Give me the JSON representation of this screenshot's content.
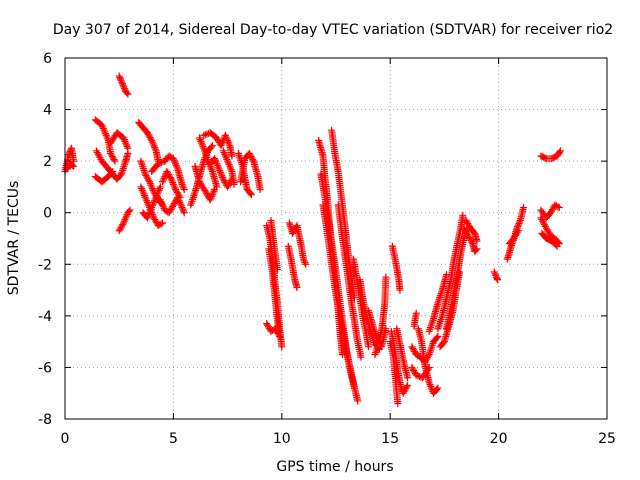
{
  "chart_data": {
    "type": "scatter",
    "title": "Day 307 of 2014, Sidereal Day-to-day VTEC variation (SDTVAR) for receiver rio2",
    "xlabel": "GPS time / hours",
    "ylabel": "SDTVAR / TECUs",
    "xlim": [
      0,
      25
    ],
    "ylim": [
      -8,
      6
    ],
    "xticks": [
      0,
      5,
      10,
      15,
      20,
      25
    ],
    "yticks": [
      -8,
      -6,
      -4,
      -2,
      0,
      2,
      4,
      6
    ],
    "grid": true,
    "legend": "none",
    "marker": "plus",
    "color": "#ff0000",
    "segments": [
      [
        [
          0.0,
          1.6
        ],
        [
          0.15,
          2.2
        ],
        [
          0.3,
          2.5
        ],
        [
          0.4,
          2.0
        ]
      ],
      [
        [
          0.1,
          1.7
        ],
        [
          0.25,
          1.9
        ],
        [
          0.4,
          1.8
        ]
      ],
      [
        [
          1.45,
          2.4
        ],
        [
          1.7,
          2.0
        ],
        [
          1.9,
          1.8
        ],
        [
          2.1,
          1.6
        ],
        [
          2.4,
          1.3
        ],
        [
          2.6,
          1.5
        ],
        [
          2.8,
          2.0
        ],
        [
          2.9,
          2.3
        ]
      ],
      [
        [
          1.4,
          3.6
        ],
        [
          1.7,
          3.4
        ],
        [
          2.0,
          2.8
        ],
        [
          2.1,
          2.3
        ],
        [
          2.3,
          2.0
        ]
      ],
      [
        [
          1.4,
          1.4
        ],
        [
          1.7,
          1.2
        ],
        [
          2.0,
          1.4
        ],
        [
          2.2,
          1.6
        ]
      ],
      [
        [
          2.1,
          2.7
        ],
        [
          2.4,
          3.1
        ],
        [
          2.7,
          2.9
        ],
        [
          2.9,
          2.5
        ]
      ],
      [
        [
          2.5,
          5.3
        ],
        [
          2.65,
          5.0
        ],
        [
          2.8,
          4.7
        ],
        [
          2.9,
          4.6
        ]
      ],
      [
        [
          2.5,
          -0.7
        ],
        [
          2.7,
          -0.4
        ],
        [
          2.9,
          0.0
        ],
        [
          3.0,
          0.1
        ]
      ],
      [
        [
          3.4,
          3.5
        ],
        [
          3.6,
          3.3
        ],
        [
          3.8,
          3.1
        ],
        [
          4.0,
          2.8
        ],
        [
          4.2,
          2.4
        ],
        [
          4.3,
          2.0
        ]
      ],
      [
        [
          3.5,
          2.0
        ],
        [
          3.7,
          1.5
        ],
        [
          3.9,
          1.2
        ],
        [
          4.1,
          0.8
        ],
        [
          4.3,
          0.5
        ],
        [
          4.5,
          0.3
        ]
      ],
      [
        [
          3.5,
          1.0
        ],
        [
          3.7,
          0.6
        ],
        [
          3.9,
          0.2
        ],
        [
          4.1,
          -0.2
        ],
        [
          4.3,
          -0.5
        ],
        [
          4.5,
          -0.4
        ]
      ],
      [
        [
          3.6,
          0.0
        ],
        [
          3.8,
          -0.2
        ],
        [
          4.0,
          0.2
        ],
        [
          4.2,
          0.6
        ],
        [
          4.4,
          1.0
        ]
      ],
      [
        [
          4.0,
          1.6
        ],
        [
          4.3,
          1.9
        ],
        [
          4.6,
          2.0
        ],
        [
          4.8,
          2.2
        ],
        [
          5.0,
          2.1
        ],
        [
          5.2,
          1.7
        ],
        [
          5.4,
          1.1
        ],
        [
          5.5,
          0.9
        ]
      ],
      [
        [
          4.4,
          0.5
        ],
        [
          4.6,
          0.1
        ],
        [
          4.8,
          0.0
        ],
        [
          5.0,
          0.3
        ],
        [
          5.2,
          0.6
        ],
        [
          5.4,
          0.2
        ],
        [
          5.5,
          0.0
        ]
      ],
      [
        [
          4.5,
          1.2
        ],
        [
          4.7,
          1.6
        ],
        [
          4.9,
          1.3
        ],
        [
          5.1,
          0.9
        ],
        [
          5.3,
          0.6
        ]
      ],
      [
        [
          5.8,
          0.3
        ],
        [
          6.0,
          0.8
        ],
        [
          6.2,
          1.4
        ],
        [
          6.4,
          2.0
        ],
        [
          6.6,
          2.4
        ],
        [
          6.8,
          2.6
        ]
      ],
      [
        [
          6.0,
          1.8
        ],
        [
          6.2,
          1.2
        ],
        [
          6.5,
          0.8
        ],
        [
          6.7,
          0.5
        ],
        [
          6.9,
          0.9
        ]
      ],
      [
        [
          6.2,
          2.9
        ],
        [
          6.4,
          2.5
        ],
        [
          6.6,
          2.0
        ],
        [
          6.8,
          1.6
        ],
        [
          7.0,
          1.0
        ]
      ],
      [
        [
          6.4,
          3.0
        ],
        [
          6.7,
          3.1
        ],
        [
          7.0,
          2.9
        ],
        [
          7.2,
          2.6
        ],
        [
          7.4,
          3.0
        ],
        [
          7.6,
          2.6
        ],
        [
          7.7,
          2.2
        ]
      ],
      [
        [
          6.7,
          1.9
        ],
        [
          6.9,
          2.1
        ],
        [
          7.1,
          1.7
        ],
        [
          7.3,
          1.3
        ],
        [
          7.5,
          1.0
        ],
        [
          7.7,
          1.3
        ]
      ],
      [
        [
          7.3,
          2.4
        ],
        [
          7.5,
          2.0
        ],
        [
          7.7,
          1.6
        ],
        [
          7.8,
          1.1
        ]
      ],
      [
        [
          8.0,
          2.3
        ],
        [
          8.2,
          1.8
        ],
        [
          8.3,
          1.3
        ],
        [
          8.4,
          0.9
        ],
        [
          8.6,
          0.7
        ]
      ],
      [
        [
          8.1,
          1.2
        ],
        [
          8.3,
          2.1
        ],
        [
          8.5,
          2.3
        ],
        [
          8.7,
          2.0
        ],
        [
          8.9,
          1.4
        ],
        [
          9.0,
          0.9
        ]
      ],
      [
        [
          9.3,
          -0.5
        ],
        [
          9.45,
          -1.0
        ],
        [
          9.6,
          -2.0
        ],
        [
          9.7,
          -2.8
        ],
        [
          9.8,
          -3.5
        ],
        [
          9.9,
          -4.5
        ],
        [
          10.0,
          -5.2
        ]
      ],
      [
        [
          9.4,
          -1.4
        ],
        [
          9.55,
          -2.2
        ],
        [
          9.65,
          -3.0
        ],
        [
          9.75,
          -3.8
        ],
        [
          9.85,
          -4.6
        ]
      ],
      [
        [
          9.5,
          -0.3
        ],
        [
          9.6,
          -1.0
        ],
        [
          9.7,
          -1.6
        ],
        [
          9.8,
          -2.2
        ]
      ],
      [
        [
          9.3,
          -4.3
        ],
        [
          9.5,
          -4.6
        ],
        [
          9.7,
          -4.5
        ],
        [
          9.9,
          -4.8
        ]
      ],
      [
        [
          10.3,
          -1.3
        ],
        [
          10.45,
          -1.9
        ],
        [
          10.6,
          -2.6
        ],
        [
          10.7,
          -2.9
        ]
      ],
      [
        [
          10.35,
          -0.4
        ],
        [
          10.5,
          -0.8
        ],
        [
          10.7,
          -0.5
        ],
        [
          10.9,
          -1.3
        ],
        [
          11.0,
          -1.8
        ],
        [
          11.1,
          -2.0
        ]
      ],
      [
        [
          11.7,
          2.8
        ],
        [
          11.9,
          2.2
        ],
        [
          12.0,
          1.3
        ],
        [
          12.1,
          0.6
        ],
        [
          12.2,
          -0.4
        ],
        [
          12.3,
          -1.2
        ],
        [
          12.4,
          -2.0
        ],
        [
          12.5,
          -2.9
        ],
        [
          12.6,
          -3.8
        ],
        [
          12.7,
          -4.8
        ],
        [
          12.8,
          -5.5
        ]
      ],
      [
        [
          11.8,
          1.5
        ],
        [
          11.95,
          0.8
        ],
        [
          12.1,
          0.0
        ],
        [
          12.25,
          -0.9
        ],
        [
          12.4,
          -1.7
        ],
        [
          12.55,
          -2.6
        ],
        [
          12.7,
          -3.6
        ],
        [
          12.85,
          -4.5
        ],
        [
          13.0,
          -5.4
        ],
        [
          13.2,
          -6.2
        ],
        [
          13.35,
          -6.8
        ]
      ],
      [
        [
          11.9,
          0.3
        ],
        [
          12.05,
          -0.5
        ],
        [
          12.2,
          -1.4
        ],
        [
          12.35,
          -2.3
        ],
        [
          12.5,
          -3.2
        ],
        [
          12.7,
          -4.1
        ],
        [
          12.9,
          -5.0
        ],
        [
          13.1,
          -5.9
        ],
        [
          13.3,
          -6.6
        ],
        [
          13.5,
          -7.3
        ]
      ],
      [
        [
          12.3,
          3.2
        ],
        [
          12.45,
          2.3
        ],
        [
          12.6,
          1.6
        ],
        [
          12.75,
          0.6
        ],
        [
          12.9,
          -0.4
        ],
        [
          13.05,
          -1.5
        ],
        [
          13.2,
          -2.4
        ],
        [
          13.35,
          -3.3
        ]
      ],
      [
        [
          12.6,
          0.3
        ],
        [
          12.75,
          -0.7
        ],
        [
          12.9,
          -1.6
        ],
        [
          13.05,
          -2.5
        ],
        [
          13.2,
          -3.4
        ],
        [
          13.35,
          -4.2
        ],
        [
          13.5,
          -5.0
        ],
        [
          13.65,
          -5.6
        ]
      ],
      [
        [
          13.3,
          -1.8
        ],
        [
          13.45,
          -2.5
        ],
        [
          13.6,
          -3.3
        ],
        [
          13.75,
          -4.1
        ],
        [
          13.9,
          -4.7
        ],
        [
          14.0,
          -5.2
        ]
      ],
      [
        [
          13.6,
          -2.6
        ],
        [
          13.75,
          -3.4
        ],
        [
          13.9,
          -4.0
        ],
        [
          14.1,
          -4.6
        ],
        [
          14.3,
          -5.1
        ],
        [
          14.5,
          -5.3
        ]
      ],
      [
        [
          14.0,
          -3.8
        ],
        [
          14.2,
          -4.4
        ],
        [
          14.4,
          -4.9
        ],
        [
          14.6,
          -5.2
        ],
        [
          14.8,
          -4.5
        ]
      ],
      [
        [
          14.3,
          -5.5
        ],
        [
          14.5,
          -5.0
        ],
        [
          14.65,
          -4.3
        ],
        [
          14.75,
          -3.5
        ],
        [
          14.8,
          -2.5
        ]
      ],
      [
        [
          15.0,
          -5.0
        ],
        [
          15.15,
          -5.6
        ],
        [
          15.25,
          -6.5
        ],
        [
          15.35,
          -7.4
        ]
      ],
      [
        [
          15.05,
          -4.6
        ],
        [
          15.2,
          -5.3
        ],
        [
          15.35,
          -6.1
        ],
        [
          15.5,
          -6.8
        ],
        [
          15.6,
          -7.0
        ],
        [
          15.8,
          -6.7
        ]
      ],
      [
        [
          15.3,
          -4.5
        ],
        [
          15.5,
          -5.3
        ],
        [
          15.65,
          -5.9
        ],
        [
          15.8,
          -6.4
        ]
      ],
      [
        [
          15.1,
          -1.3
        ],
        [
          15.25,
          -1.9
        ],
        [
          15.4,
          -2.6
        ],
        [
          15.45,
          -3.0
        ]
      ],
      [
        [
          16.2,
          -3.9
        ],
        [
          16.1,
          -4.4
        ]
      ],
      [
        [
          16.0,
          -5.2
        ],
        [
          16.2,
          -5.5
        ],
        [
          16.4,
          -5.6
        ],
        [
          16.6,
          -5.8
        ],
        [
          16.8,
          -5.5
        ],
        [
          17.0,
          -5.0
        ],
        [
          17.2,
          -4.8
        ]
      ],
      [
        [
          16.3,
          -4.5
        ],
        [
          16.45,
          -5.0
        ],
        [
          16.6,
          -5.9
        ],
        [
          16.8,
          -6.6
        ],
        [
          17.0,
          -7.0
        ],
        [
          17.2,
          -6.8
        ]
      ],
      [
        [
          16.0,
          -6.0
        ],
        [
          16.2,
          -6.3
        ],
        [
          16.5,
          -6.4
        ],
        [
          16.8,
          -6.0
        ]
      ],
      [
        [
          16.8,
          -4.6
        ],
        [
          17.0,
          -4.1
        ],
        [
          17.2,
          -3.5
        ],
        [
          17.4,
          -3.0
        ],
        [
          17.6,
          -2.4
        ]
      ],
      [
        [
          17.2,
          -4.5
        ],
        [
          17.4,
          -4.0
        ],
        [
          17.6,
          -3.3
        ],
        [
          17.8,
          -2.6
        ],
        [
          17.95,
          -1.8
        ],
        [
          18.1,
          -1.2
        ],
        [
          18.25,
          -0.6
        ],
        [
          18.35,
          -0.1
        ]
      ],
      [
        [
          17.6,
          -4.5
        ],
        [
          17.8,
          -3.7
        ],
        [
          17.95,
          -3.0
        ],
        [
          18.1,
          -2.4
        ],
        [
          18.25,
          -1.6
        ],
        [
          18.4,
          -1.0
        ],
        [
          18.55,
          -0.6
        ]
      ],
      [
        [
          17.3,
          -5.2
        ],
        [
          17.5,
          -5.0
        ],
        [
          17.7,
          -4.4
        ],
        [
          17.9,
          -3.8
        ],
        [
          18.05,
          -3.0
        ],
        [
          18.2,
          -2.3
        ]
      ],
      [
        [
          18.4,
          -0.6
        ],
        [
          18.6,
          -0.9
        ],
        [
          18.8,
          -1.2
        ],
        [
          18.9,
          -1.5
        ],
        [
          19.0,
          -1.4
        ]
      ],
      [
        [
          18.5,
          -0.3
        ],
        [
          18.7,
          -0.6
        ],
        [
          18.9,
          -0.8
        ],
        [
          19.0,
          -1.1
        ]
      ],
      [
        [
          19.8,
          -2.3
        ],
        [
          19.9,
          -2.5
        ],
        [
          19.95,
          -2.6
        ]
      ],
      [
        [
          20.4,
          -1.8
        ],
        [
          20.55,
          -1.4
        ],
        [
          20.7,
          -1.0
        ],
        [
          20.85,
          -0.6
        ],
        [
          21.0,
          -0.3
        ],
        [
          21.15,
          0.2
        ]
      ],
      [
        [
          20.5,
          -1.2
        ],
        [
          20.7,
          -1.0
        ],
        [
          20.9,
          -0.7
        ]
      ],
      [
        [
          21.95,
          2.2
        ],
        [
          22.2,
          2.1
        ],
        [
          22.45,
          2.1
        ],
        [
          22.7,
          2.2
        ],
        [
          22.85,
          2.4
        ]
      ],
      [
        [
          21.95,
          0.1
        ],
        [
          22.2,
          -0.2
        ],
        [
          22.4,
          0.0
        ],
        [
          22.6,
          0.3
        ],
        [
          22.8,
          0.2
        ]
      ],
      [
        [
          21.95,
          -0.2
        ],
        [
          22.2,
          -0.6
        ],
        [
          22.4,
          -0.9
        ],
        [
          22.6,
          -1.0
        ],
        [
          22.8,
          -1.2
        ]
      ],
      [
        [
          22.0,
          -0.8
        ],
        [
          22.2,
          -1.0
        ],
        [
          22.45,
          -1.1
        ],
        [
          22.7,
          -1.3
        ]
      ]
    ]
  }
}
